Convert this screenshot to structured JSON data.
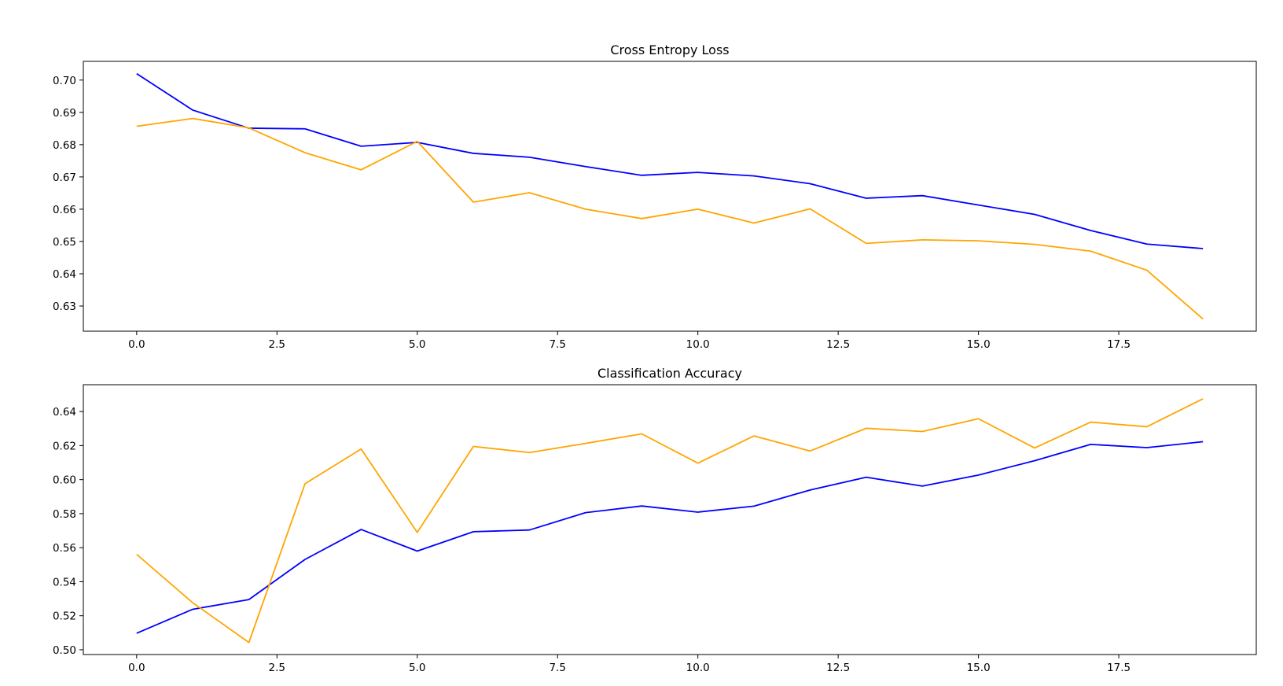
{
  "chart_data": [
    {
      "type": "line",
      "title": "Cross Entropy Loss",
      "xlabel": "",
      "ylabel": "",
      "xlim": [
        -0.95,
        19.95
      ],
      "ylim": [
        0.6222,
        0.7058
      ],
      "xticks": [
        "0.0",
        "2.5",
        "5.0",
        "7.5",
        "10.0",
        "12.5",
        "15.0",
        "17.5"
      ],
      "yticks": [
        "0.63",
        "0.64",
        "0.65",
        "0.66",
        "0.67",
        "0.68",
        "0.69",
        "0.70"
      ],
      "grid": false,
      "x": [
        0,
        1,
        2,
        3,
        4,
        5,
        6,
        7,
        8,
        9,
        10,
        11,
        12,
        13,
        14,
        15,
        16,
        17,
        18,
        19
      ],
      "series": [
        {
          "color": "#0000ff",
          "values": [
            0.702,
            0.6907,
            0.6851,
            0.6849,
            0.6795,
            0.6807,
            0.6773,
            0.6761,
            0.6732,
            0.6705,
            0.6714,
            0.6703,
            0.6679,
            0.6634,
            0.6642,
            0.6613,
            0.6584,
            0.6534,
            0.6492,
            0.6478
          ]
        },
        {
          "color": "#ffa500",
          "values": [
            0.6857,
            0.6881,
            0.6852,
            0.6775,
            0.6722,
            0.681,
            0.6622,
            0.6651,
            0.66,
            0.6571,
            0.66,
            0.6557,
            0.6601,
            0.6494,
            0.6505,
            0.6502,
            0.6491,
            0.647,
            0.6411,
            0.626
          ]
        }
      ]
    },
    {
      "type": "line",
      "title": "Classification Accuracy",
      "xlabel": "",
      "ylabel": "",
      "xlim": [
        -0.95,
        19.95
      ],
      "ylim": [
        0.4972,
        0.6558
      ],
      "xticks": [
        "0.0",
        "2.5",
        "5.0",
        "7.5",
        "10.0",
        "12.5",
        "15.0",
        "17.5"
      ],
      "yticks": [
        "0.50",
        "0.52",
        "0.54",
        "0.56",
        "0.58",
        "0.60",
        "0.62",
        "0.64"
      ],
      "grid": false,
      "x": [
        0,
        1,
        2,
        3,
        4,
        5,
        6,
        7,
        8,
        9,
        10,
        11,
        12,
        13,
        14,
        15,
        16,
        17,
        18,
        19
      ],
      "series": [
        {
          "color": "#0000ff",
          "values": [
            0.5097,
            0.5238,
            0.5295,
            0.5531,
            0.5707,
            0.558,
            0.5694,
            0.5704,
            0.5806,
            0.5845,
            0.5809,
            0.5844,
            0.5939,
            0.6014,
            0.5962,
            0.6027,
            0.6111,
            0.6207,
            0.6188,
            0.6223
          ]
        },
        {
          "color": "#ffa500",
          "values": [
            0.5561,
            0.5276,
            0.5043,
            0.5976,
            0.618,
            0.569,
            0.6195,
            0.6159,
            0.6213,
            0.6269,
            0.6097,
            0.6257,
            0.6168,
            0.6302,
            0.6283,
            0.6358,
            0.6186,
            0.6338,
            0.6311,
            0.6475
          ]
        }
      ]
    }
  ]
}
